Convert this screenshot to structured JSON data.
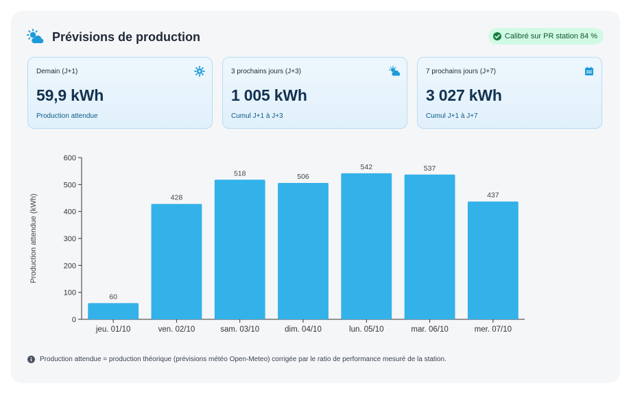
{
  "header": {
    "title": "Prévisions de production",
    "badge": "Calibré sur PR station 84 %"
  },
  "cards": [
    {
      "label": "Demain (J+1)",
      "value": "59,9 kWh",
      "sub": "Production attendue",
      "icon": "sun-gear-icon"
    },
    {
      "label": "3 prochains jours (J+3)",
      "value": "1 005 kWh",
      "sub": "Cumul J+1 à J+3",
      "icon": "sun-cloud-icon"
    },
    {
      "label": "7 prochains jours (J+7)",
      "value": "3 027 kWh",
      "sub": "Cumul J+1 à J+7",
      "icon": "calendar-icon"
    }
  ],
  "chart_data": {
    "type": "bar",
    "categories": [
      "jeu. 01/10",
      "ven. 02/10",
      "sam. 03/10",
      "dim. 04/10",
      "lun. 05/10",
      "mar. 06/10",
      "mer. 07/10"
    ],
    "values": [
      60,
      428,
      518,
      506,
      542,
      537,
      437
    ],
    "ylabel": "Production attendue (kWh)",
    "ylim": [
      0,
      600
    ],
    "yticks": [
      0,
      100,
      200,
      300,
      400,
      500,
      600
    ],
    "bar_color": "#33b1e9",
    "grid": false
  },
  "footnote": "Production attendue = production théorique (prévisions météo Open-Meteo) corrigée par le ratio de performance mesuré de la station.",
  "colors": {
    "accent": "#33b1e9",
    "icon_blue": "#1d9bd9",
    "badge_bg": "#d1fae5",
    "badge_text": "#14532d"
  }
}
